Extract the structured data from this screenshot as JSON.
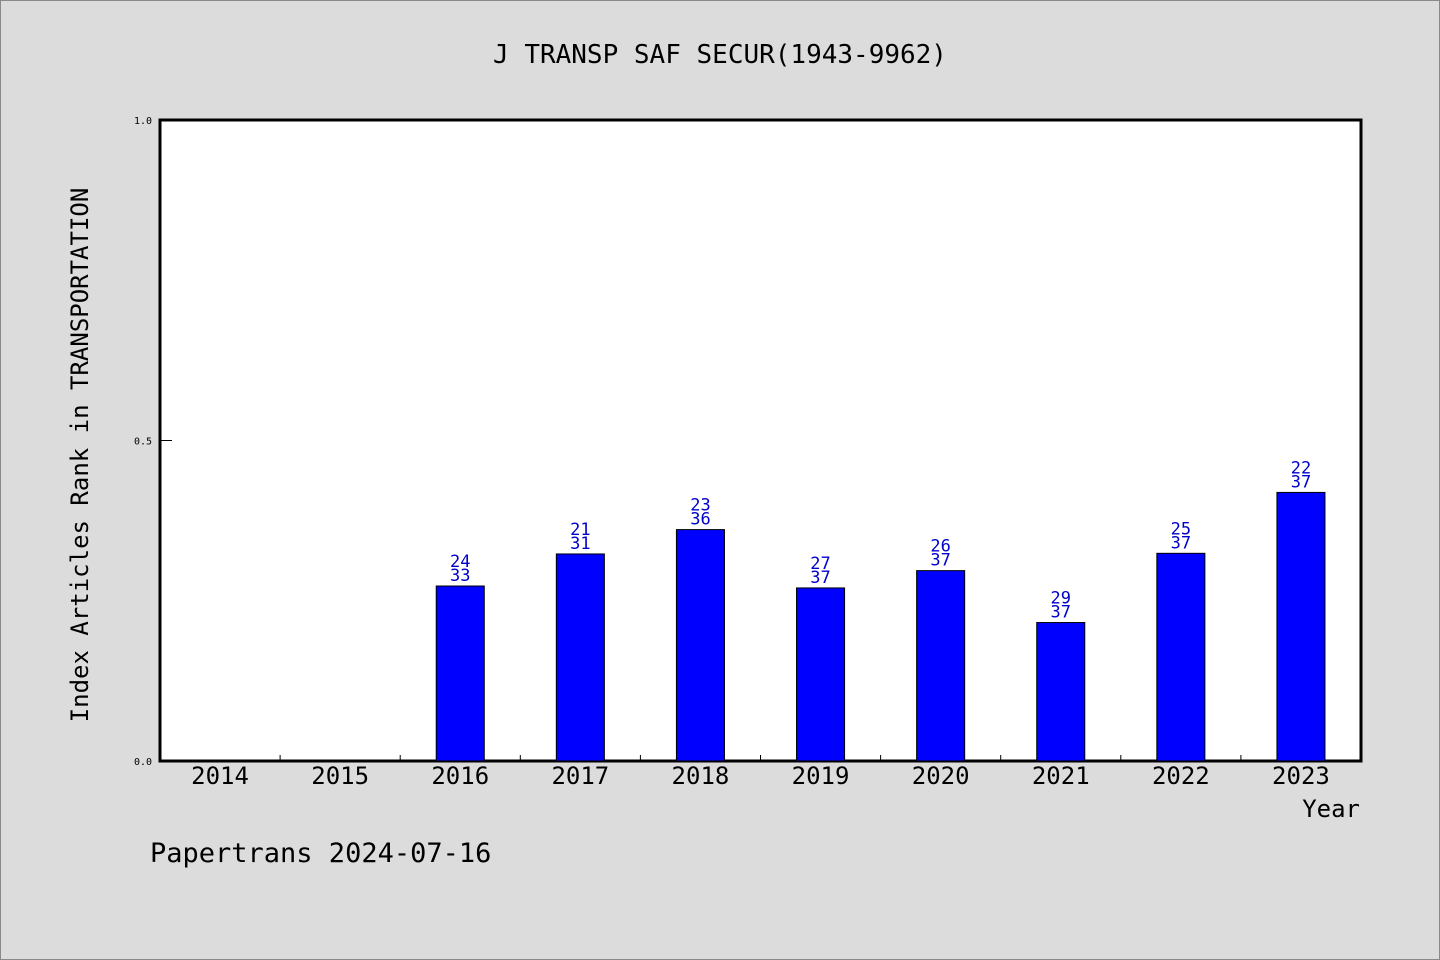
{
  "chart_data": {
    "type": "bar",
    "title": "J TRANSP SAF SECUR(1943-9962)",
    "xlabel": "Year",
    "ylabel": "Index Articles Rank in TRANSPORTATION",
    "ylim": [
      0,
      1
    ],
    "yticks": [
      "0.0",
      "0.5",
      "1.0"
    ],
    "categories": [
      "2014",
      "2015",
      "2016",
      "2017",
      "2018",
      "2019",
      "2020",
      "2021",
      "2022",
      "2023"
    ],
    "values": [
      null,
      null,
      0.273,
      0.323,
      0.361,
      0.27,
      0.297,
      0.216,
      0.324,
      0.419
    ],
    "labels_top": [
      null,
      null,
      "24",
      "21",
      "23",
      "27",
      "26",
      "29",
      "25",
      "22"
    ],
    "labels_bottom": [
      null,
      null,
      "33",
      "31",
      "36",
      "37",
      "37",
      "37",
      "37",
      "37"
    ],
    "bar_color": "#0000ff",
    "label_color": "#0000cc",
    "grid": false,
    "legend": "none"
  },
  "footer": "Papertrans 2024-07-16"
}
